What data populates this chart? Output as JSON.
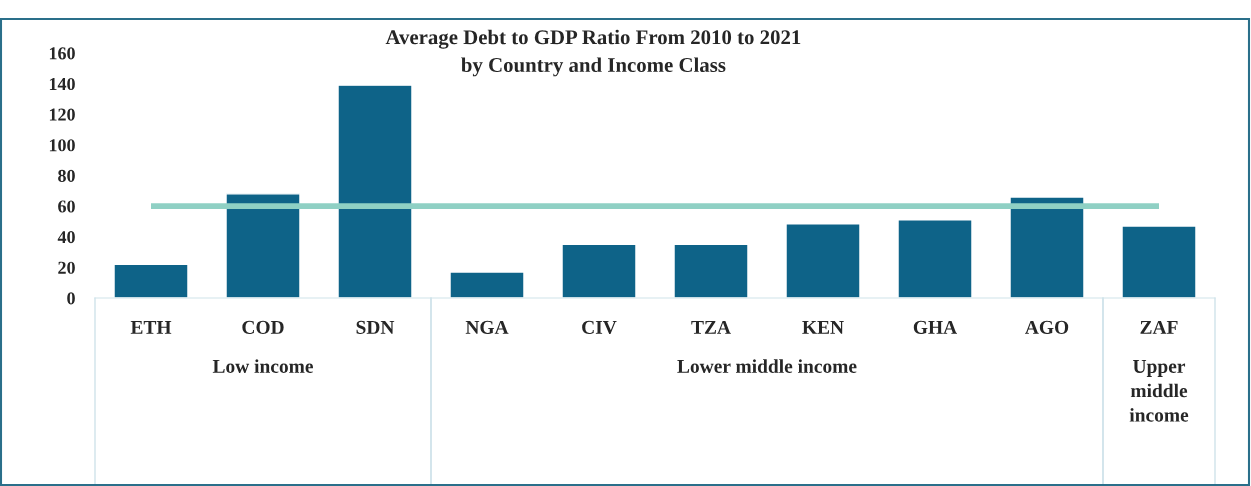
{
  "chart_data": {
    "type": "bar",
    "title": "Average Debt to GDP Ratio From 2010 to 2021\nby Country and Income Class",
    "categories": [
      "ETH",
      "COD",
      "SDN",
      "NGA",
      "CIV",
      "TZA",
      "KEN",
      "GHA",
      "AGO",
      "ZAF"
    ],
    "values": [
      22,
      68,
      139,
      17,
      35,
      35,
      48.5,
      51,
      66,
      47
    ],
    "color": "#0e6388",
    "ylim": [
      0,
      160
    ],
    "yticks": [
      0,
      20,
      40,
      60,
      80,
      100,
      120,
      140,
      160
    ],
    "ref_lines": [
      {
        "axis": "y",
        "value": 60,
        "color": "#8fd0c4"
      }
    ],
    "annotations": [
      "Low income",
      "Lower middle income",
      "Upper\nmiddle\nincome"
    ],
    "grid": false
  }
}
